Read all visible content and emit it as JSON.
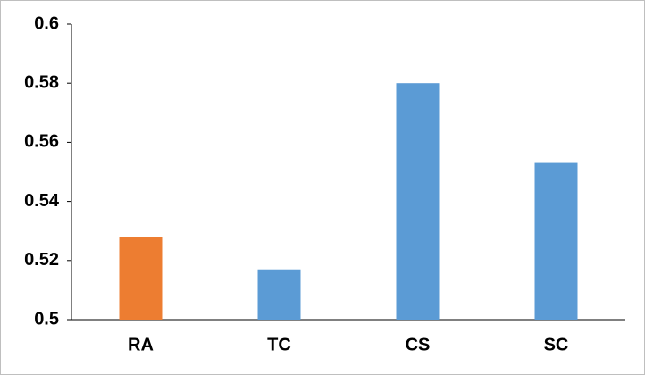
{
  "chart_data": {
    "type": "bar",
    "categories": [
      "RA",
      "TC",
      "CS",
      "SC"
    ],
    "values": [
      0.528,
      0.517,
      0.58,
      0.553
    ],
    "colors": [
      "#ed7d31",
      "#5b9bd5",
      "#5b9bd5",
      "#5b9bd5"
    ],
    "ylim": [
      0.5,
      0.6
    ],
    "yticks": [
      0.5,
      0.52,
      0.54,
      0.56,
      0.58,
      0.6
    ],
    "grid": false
  }
}
